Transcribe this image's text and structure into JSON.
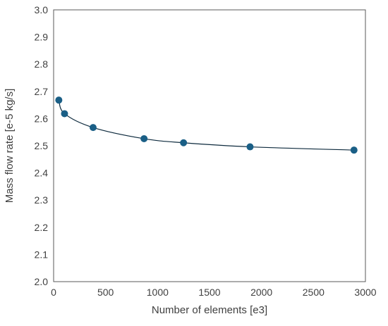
{
  "chart_data": {
    "type": "scatter",
    "title": "",
    "xlabel": "Number of elements [e3]",
    "ylabel": "Mass flow rate [e-5 kg/s]",
    "xlim": [
      0,
      3000
    ],
    "ylim": [
      2.0,
      3.0
    ],
    "x_ticks": [
      0,
      500,
      1000,
      1500,
      2000,
      2500,
      3000
    ],
    "y_ticks": [
      "2.0",
      "2.1",
      "2.2",
      "2.3",
      "2.4",
      "2.5",
      "2.6",
      "2.7",
      "2.8",
      "2.9",
      "3.0"
    ],
    "grid": false,
    "legend": "none",
    "line_connected": true,
    "series": [
      {
        "color": "#1a5f86",
        "line_color": "#0d2a3d",
        "x": [
          50,
          105,
          380,
          870,
          1250,
          1890,
          2890
        ],
        "y": [
          2.668,
          2.618,
          2.567,
          2.526,
          2.511,
          2.496,
          2.484
        ]
      }
    ]
  }
}
